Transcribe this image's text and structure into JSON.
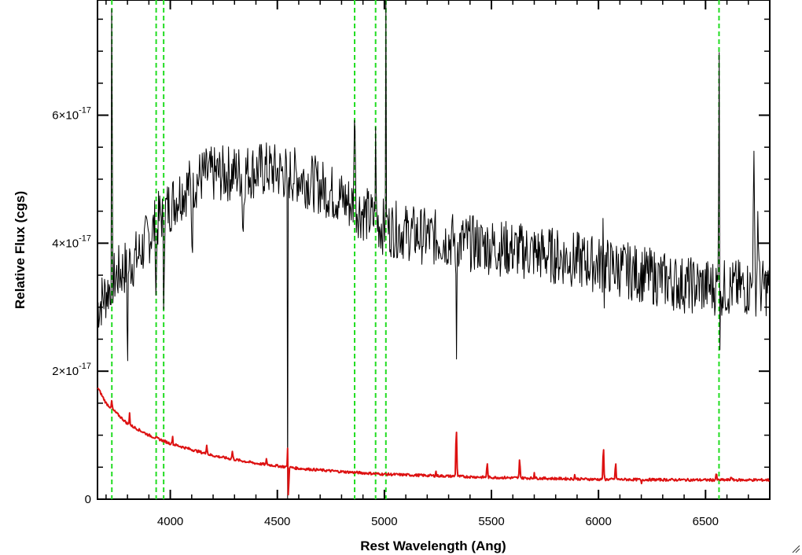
{
  "chart_data": {
    "type": "line",
    "xlabel": "Rest Wavelength (Ang)",
    "ylabel": "Relative Flux (cgs)",
    "xlim": [
      3660,
      6800
    ],
    "ylim": [
      0,
      7.8e-17
    ],
    "x_ticks": [
      4000,
      4500,
      5000,
      5500,
      6000,
      6500
    ],
    "x_tick_labels": [
      "4000",
      "4500",
      "5000",
      "5500",
      "6000",
      "6500"
    ],
    "y_ticks": [
      0,
      2e-17,
      4e-17,
      6e-17
    ],
    "y_tick_labels": [
      {
        "mantissa": "0",
        "exponent": ""
      },
      {
        "mantissa": "2×10",
        "exponent": "-17"
      },
      {
        "mantissa": "4×10",
        "exponent": "-17"
      },
      {
        "mantissa": "6×10",
        "exponent": "-17"
      }
    ],
    "grid": false,
    "series": [
      {
        "color": "#000000",
        "continuum": [
          [
            3660,
            3e-17
          ],
          [
            3750,
            3.5e-17
          ],
          [
            3850,
            3.8e-17
          ],
          [
            3950,
            4.4e-17
          ],
          [
            4050,
            4.8e-17
          ],
          [
            4150,
            5.05e-17
          ],
          [
            4300,
            5.1e-17
          ],
          [
            4450,
            5.15e-17
          ],
          [
            4600,
            5.05e-17
          ],
          [
            4750,
            4.8e-17
          ],
          [
            4850,
            4.6e-17
          ],
          [
            5000,
            4.25e-17
          ],
          [
            5200,
            4.1e-17
          ],
          [
            5500,
            3.95e-17
          ],
          [
            5800,
            3.8e-17
          ],
          [
            6100,
            3.6e-17
          ],
          [
            6400,
            3.35e-17
          ],
          [
            6600,
            3.3e-17
          ],
          [
            6800,
            3.3e-17
          ]
        ],
        "noise": 4.5e-18,
        "features": [
          {
            "x": 3727,
            "dy": 5e-17,
            "w": 2
          },
          {
            "x": 3800,
            "dy": -1.4e-17,
            "w": 3
          },
          {
            "x": 3934,
            "dy": -1.1e-17,
            "w": 3
          },
          {
            "x": 3969,
            "dy": -1.3e-17,
            "w": 3
          },
          {
            "x": 4102,
            "dy": -9e-18,
            "w": 4
          },
          {
            "x": 4340,
            "dy": -1e-17,
            "w": 4
          },
          {
            "x": 4548,
            "dy": -5.1e-17,
            "w": 2
          },
          {
            "x": 4861,
            "dy": 1.9e-17,
            "w": 3
          },
          {
            "x": 4959,
            "dy": 1.2e-17,
            "w": 3
          },
          {
            "x": 5007,
            "dy": 3.8e-17,
            "w": 2
          },
          {
            "x": 5336,
            "dy": -2.4e-17,
            "w": 2
          },
          {
            "x": 6023,
            "dy": 1.8e-17,
            "w": 2
          },
          {
            "x": 6025,
            "dy": -1.3e-17,
            "w": 2
          },
          {
            "x": 6563,
            "dy": 5e-17,
            "w": 2
          },
          {
            "x": 6568,
            "dy": -1e-17,
            "w": 2
          },
          {
            "x": 6725,
            "dy": 2e-17,
            "w": 4
          },
          {
            "x": 6745,
            "dy": 1.2e-17,
            "w": 4
          }
        ]
      },
      {
        "color": "#dd1111",
        "continuum": [
          [
            3660,
            1.75e-17
          ],
          [
            3700,
            1.5e-17
          ],
          [
            3800,
            1.18e-17
          ],
          [
            3900,
            1e-17
          ],
          [
            4000,
            8.7e-18
          ],
          [
            4200,
            6.8e-18
          ],
          [
            4400,
            5.6e-18
          ],
          [
            4600,
            4.8e-18
          ],
          [
            4800,
            4.3e-18
          ],
          [
            5000,
            3.9e-18
          ],
          [
            5200,
            3.7e-18
          ],
          [
            5500,
            3.4e-18
          ],
          [
            6000,
            3.1e-18
          ],
          [
            6500,
            3e-18
          ],
          [
            6800,
            3e-18
          ]
        ],
        "noise": 2e-19,
        "features": [
          {
            "x": 3727,
            "dy": 1.5e-18,
            "w": 2
          },
          {
            "x": 3810,
            "dy": 2e-18,
            "w": 2
          },
          {
            "x": 4010,
            "dy": 1.5e-18,
            "w": 2
          },
          {
            "x": 4170,
            "dy": 1.5e-18,
            "w": 3
          },
          {
            "x": 4290,
            "dy": 1.2e-18,
            "w": 3
          },
          {
            "x": 4450,
            "dy": 1e-18,
            "w": 2
          },
          {
            "x": 4548,
            "dy": 3e-18,
            "w": 2
          },
          {
            "x": 4552,
            "dy": -6e-18,
            "w": 2
          },
          {
            "x": 5240,
            "dy": 8e-19,
            "w": 2
          },
          {
            "x": 5336,
            "dy": 7.8e-18,
            "w": 3
          },
          {
            "x": 5480,
            "dy": 2.2e-18,
            "w": 3
          },
          {
            "x": 5632,
            "dy": 3e-18,
            "w": 3
          },
          {
            "x": 5700,
            "dy": 1e-18,
            "w": 2
          },
          {
            "x": 5890,
            "dy": 8e-19,
            "w": 2
          },
          {
            "x": 6023,
            "dy": 5e-18,
            "w": 3
          },
          {
            "x": 6080,
            "dy": 2.5e-18,
            "w": 3
          },
          {
            "x": 6200,
            "dy": -8e-19,
            "w": 2
          },
          {
            "x": 6550,
            "dy": 1e-18,
            "w": 3
          },
          {
            "x": 6620,
            "dy": 6e-19,
            "w": 3
          }
        ]
      }
    ],
    "reference_lines": {
      "color": "#22dd22",
      "style": "dashed",
      "x": [
        3727,
        3934,
        3969,
        4861,
        4959,
        5007,
        6563
      ]
    }
  }
}
